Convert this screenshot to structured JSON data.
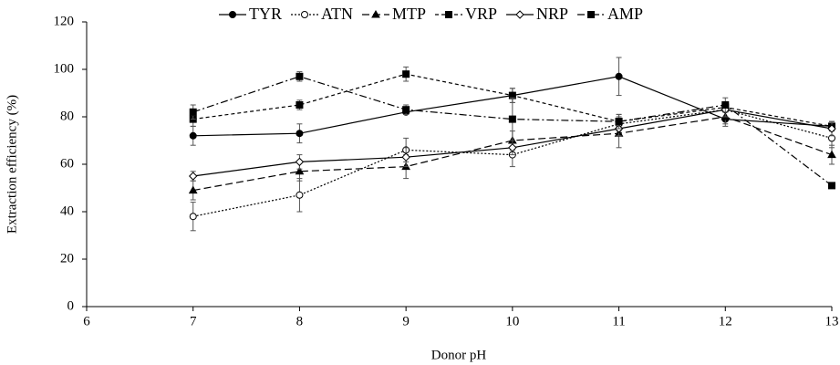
{
  "chart_data": {
    "type": "line",
    "x_label": "Donor pH",
    "y_label": "Extraction efficiency (%)",
    "x": [
      7,
      8,
      9,
      10,
      11,
      12,
      13
    ],
    "xlim": [
      6,
      13
    ],
    "xticks": [
      6,
      7,
      8,
      9,
      10,
      11,
      12,
      13
    ],
    "ylim": [
      0,
      120
    ],
    "yticks": [
      0,
      20,
      40,
      60,
      80,
      100,
      120
    ],
    "grid": false,
    "legend": "top",
    "series": [
      {
        "name": "TYR",
        "color": "#000000",
        "dash": "solid",
        "marker": "filled-circle",
        "values": [
          72,
          73,
          82,
          89,
          97,
          79,
          76
        ],
        "errors": [
          4,
          4,
          1,
          3,
          8,
          3,
          2
        ]
      },
      {
        "name": "ATN",
        "color": "#000000",
        "dash": "dotted",
        "marker": "open-circle",
        "values": [
          38,
          47,
          66,
          64,
          77,
          83,
          71
        ],
        "errors": [
          6,
          7,
          5,
          5,
          3,
          3,
          4
        ]
      },
      {
        "name": "MTP",
        "color": "#000000",
        "dash": "dashed",
        "marker": "triangle",
        "values": [
          49,
          57,
          59,
          70,
          73,
          80,
          64
        ],
        "errors": [
          4,
          4,
          5,
          4,
          6,
          3,
          4
        ]
      },
      {
        "name": "VRP",
        "color": "#000000",
        "dash": "short-dash",
        "marker": "square",
        "values": [
          79,
          85,
          98,
          89,
          78,
          84,
          76
        ],
        "errors": [
          3,
          2,
          3,
          3,
          3,
          2,
          2
        ]
      },
      {
        "name": "NRP",
        "color": "#000000",
        "dash": "solid",
        "marker": "open-diamond",
        "values": [
          55,
          61,
          63,
          67,
          75,
          83,
          75
        ],
        "errors": [
          2,
          3,
          4,
          3,
          3,
          3,
          3
        ]
      },
      {
        "name": "AMP",
        "color": "#000000",
        "dash": "dash-dot",
        "marker": "square",
        "values": [
          82,
          97,
          83,
          79,
          78,
          85,
          51
        ],
        "errors": [
          3,
          2,
          2,
          9,
          3,
          3,
          1
        ]
      }
    ]
  }
}
